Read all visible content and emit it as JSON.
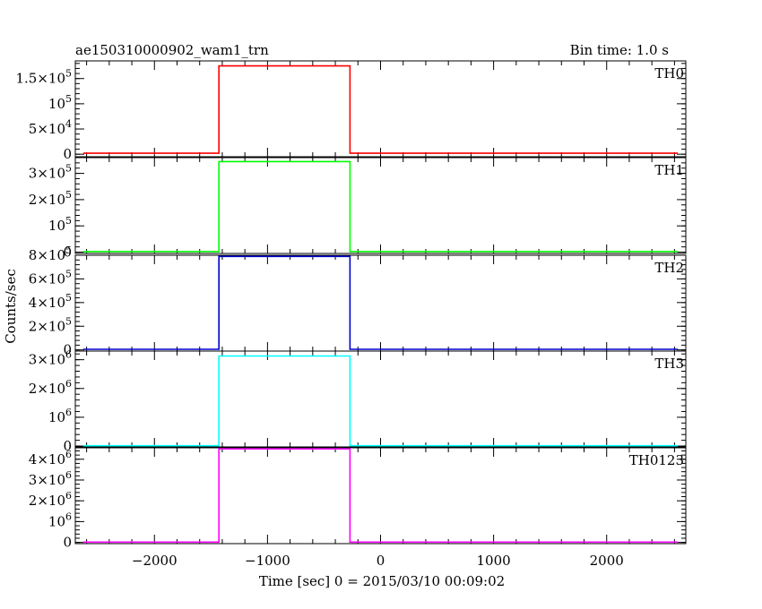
{
  "chart_data": {
    "type": "line",
    "title": "ae150310000902_wam1_trn",
    "subtitle": "Bin time: 1.0 s",
    "xlabel": "Time [sec] 0 = 2015/03/10 00:09:02",
    "ylabel": "Counts/sec",
    "xlim": [
      -2700,
      2700
    ],
    "x_ticks": [
      {
        "value": -2000,
        "label": "−2000"
      },
      {
        "value": -1000,
        "label": "−1000"
      },
      {
        "value": 0,
        "label": "0"
      },
      {
        "value": 1000,
        "label": "1000"
      },
      {
        "value": 2000,
        "label": "2000"
      }
    ],
    "grid": false,
    "panels": [
      {
        "name": "TH0",
        "color": "#ff0000",
        "ylim": [
          -5000,
          185000
        ],
        "y_ticks": [
          {
            "value": 0,
            "mant": "0",
            "exp": ""
          },
          {
            "value": 50000,
            "mant": "5×10",
            "exp": "4"
          },
          {
            "value": 100000,
            "mant": "10",
            "exp": "5"
          },
          {
            "value": 150000,
            "mant": "1.5×10",
            "exp": "5"
          }
        ],
        "x": [
          -2630,
          -1430,
          -1430,
          -270,
          -270,
          2630
        ],
        "y": [
          2000,
          2000,
          175000,
          175000,
          2000,
          2000
        ]
      },
      {
        "name": "TH1",
        "color": "#00ff00",
        "ylim": [
          -5000,
          360000
        ],
        "y_ticks": [
          {
            "value": 0,
            "mant": "0",
            "exp": ""
          },
          {
            "value": 100000,
            "mant": "10",
            "exp": "5"
          },
          {
            "value": 200000,
            "mant": "2×10",
            "exp": "5"
          },
          {
            "value": 300000,
            "mant": "3×10",
            "exp": "5"
          }
        ],
        "x": [
          -2630,
          -1430,
          -1430,
          -270,
          -270,
          2630
        ],
        "y": [
          2000,
          2000,
          345000,
          345000,
          2000,
          2000
        ]
      },
      {
        "name": "TH2",
        "color": "#0000cc",
        "ylim": [
          -10000,
          800000
        ],
        "y_ticks": [
          {
            "value": 0,
            "mant": "0",
            "exp": ""
          },
          {
            "value": 200000,
            "mant": "2×10",
            "exp": "5"
          },
          {
            "value": 400000,
            "mant": "4×10",
            "exp": "5"
          },
          {
            "value": 600000,
            "mant": "6×10",
            "exp": "5"
          },
          {
            "value": 800000,
            "mant": "8×10",
            "exp": "5"
          }
        ],
        "x": [
          -2630,
          -1430,
          -1430,
          -270,
          -270,
          2630
        ],
        "y": [
          5000,
          5000,
          790000,
          790000,
          5000,
          5000
        ]
      },
      {
        "name": "TH3",
        "color": "#00ffff",
        "ylim": [
          -30000,
          3300000
        ],
        "y_ticks": [
          {
            "value": 0,
            "mant": "0",
            "exp": ""
          },
          {
            "value": 1000000,
            "mant": "10",
            "exp": "6"
          },
          {
            "value": 2000000,
            "mant": "2×10",
            "exp": "6"
          },
          {
            "value": 3000000,
            "mant": "3×10",
            "exp": "6"
          }
        ],
        "x": [
          -2630,
          -1430,
          -1430,
          -270,
          -270,
          2630
        ],
        "y": [
          10000,
          10000,
          3130000,
          3130000,
          10000,
          10000
        ]
      },
      {
        "name": "TH0123",
        "color": "#ff00ff",
        "ylim": [
          -60000,
          4550000
        ],
        "y_ticks": [
          {
            "value": 0,
            "mant": "0",
            "exp": ""
          },
          {
            "value": 1000000,
            "mant": "10",
            "exp": "6"
          },
          {
            "value": 2000000,
            "mant": "2×10",
            "exp": "6"
          },
          {
            "value": 3000000,
            "mant": "3×10",
            "exp": "6"
          },
          {
            "value": 4000000,
            "mant": "4×10",
            "exp": "6"
          }
        ],
        "x": [
          -2630,
          -1430,
          -1430,
          -270,
          -270,
          2630
        ],
        "y": [
          15000,
          15000,
          4500000,
          4500000,
          15000,
          15000
        ]
      }
    ]
  }
}
